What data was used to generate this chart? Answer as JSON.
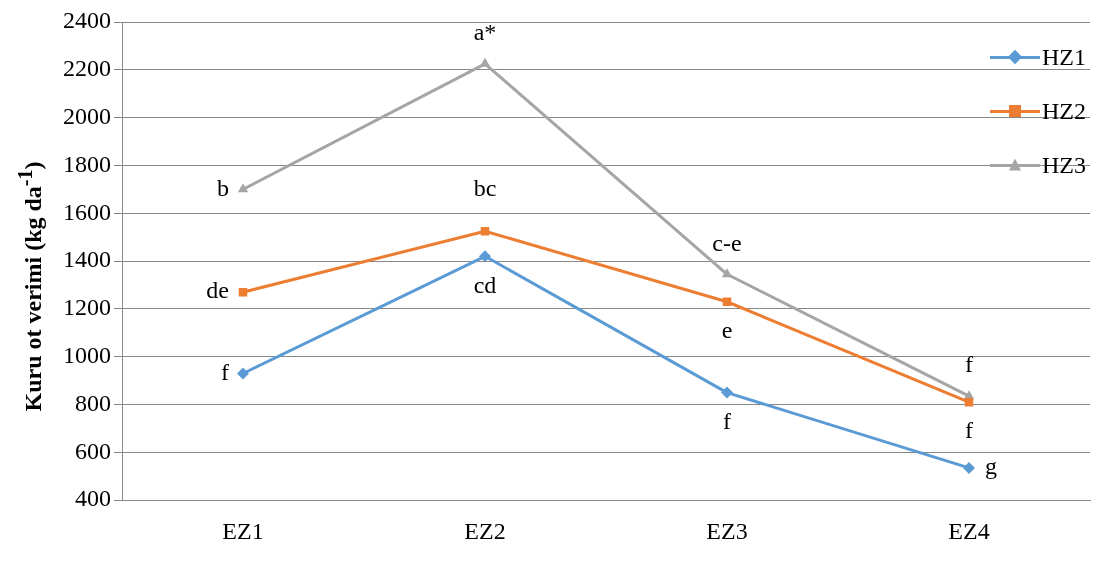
{
  "chart_data": {
    "type": "line",
    "ylabel": "Kuru ot verimi (kg da$^{-1}$)",
    "categories": [
      "EZ1",
      "EZ2",
      "EZ3",
      "EZ4"
    ],
    "series": [
      {
        "name": "HZ1",
        "color": "#5b9bd5",
        "marker": "diamond",
        "values": [
          930,
          1420,
          850,
          535
        ]
      },
      {
        "name": "HZ2",
        "color": "#ed7d31",
        "marker": "square",
        "values": [
          1270,
          1525,
          1230,
          810
        ]
      },
      {
        "name": "HZ3",
        "color": "#a5a5a5",
        "marker": "triangle",
        "values": [
          1700,
          2225,
          1345,
          835
        ]
      }
    ],
    "ylim": [
      400,
      2400
    ],
    "yticks": [
      400,
      600,
      800,
      1000,
      1200,
      1400,
      1600,
      1800,
      2000,
      2200,
      2400
    ],
    "grid": "y",
    "legend": "top right",
    "annotations": [
      {
        "text": "f",
        "x": "EZ1",
        "y": 930
      },
      {
        "text": "de",
        "x": "EZ1",
        "y": 1270
      },
      {
        "text": "b",
        "x": "EZ1",
        "y": 1700
      },
      {
        "text": "cd",
        "x": "EZ2",
        "y": 1420
      },
      {
        "text": "bc",
        "x": "EZ2",
        "y": 1525
      },
      {
        "text": "a*",
        "x": "EZ2",
        "y": 2225
      },
      {
        "text": "f",
        "x": "EZ3",
        "y": 850
      },
      {
        "text": "e",
        "x": "EZ3",
        "y": 1230
      },
      {
        "text": "c-e",
        "x": "EZ3",
        "y": 1345
      },
      {
        "text": "g",
        "x": "EZ4",
        "y": 535
      },
      {
        "text": "f",
        "x": "EZ4",
        "y": 810
      },
      {
        "text": "f",
        "x": "EZ4",
        "y": 835
      }
    ]
  }
}
